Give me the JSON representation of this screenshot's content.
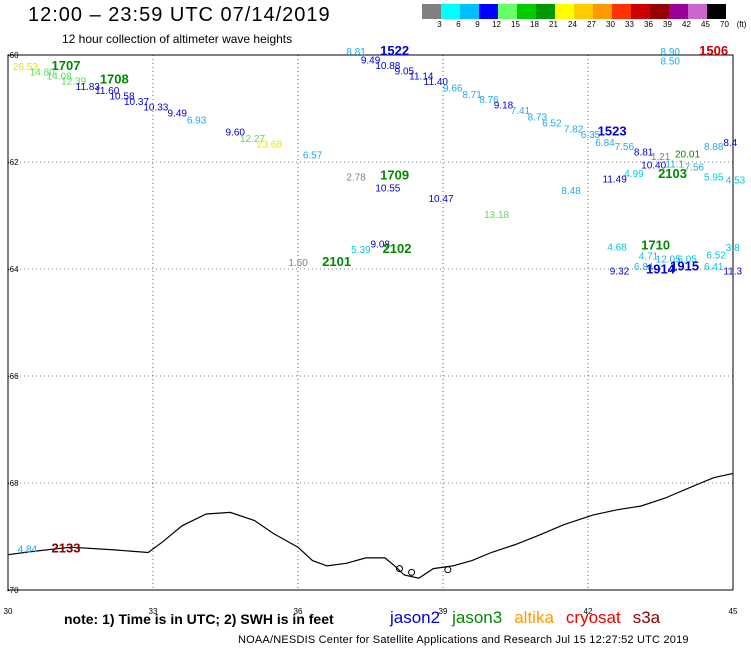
{
  "title": "12:00 – 23:59 UTC 07/14/2019",
  "subtitle": "12 hour collection of altimeter wave heights",
  "legend": {
    "unit": "(ft)",
    "bins": [
      {
        "label": "3",
        "color": "#808080"
      },
      {
        "label": "6",
        "color": "#00ffff"
      },
      {
        "label": "9",
        "color": "#00bfff"
      },
      {
        "label": "12",
        "color": "#0000ff"
      },
      {
        "label": "15",
        "color": "#66ff66"
      },
      {
        "label": "18",
        "color": "#00cc00"
      },
      {
        "label": "21",
        "color": "#009900"
      },
      {
        "label": "24",
        "color": "#ffff00"
      },
      {
        "label": "27",
        "color": "#ffcc00"
      },
      {
        "label": "30",
        "color": "#ff9900"
      },
      {
        "label": "33",
        "color": "#ff3300"
      },
      {
        "label": "36",
        "color": "#cc0000"
      },
      {
        "label": "39",
        "color": "#990000"
      },
      {
        "label": "42",
        "color": "#990099"
      },
      {
        "label": "45",
        "color": "#cc66cc"
      },
      {
        "label": "70",
        "color": "#000000"
      }
    ]
  },
  "axes": {
    "lon_ticks": [
      "30",
      "33",
      "36",
      "39",
      "42",
      "45"
    ],
    "lat_ticks": [
      "-60",
      "-62",
      "-64",
      "-66",
      "-68",
      "-70"
    ]
  },
  "colors": {
    "gray": "#808080",
    "cyan": "#00ccdd",
    "lightblue": "#22aaee",
    "blue": "#0000dd",
    "lightgreen": "#55dd55",
    "green": "#008800",
    "yellow": "#e8e800",
    "red": "#cc0000",
    "darkred": "#880000"
  },
  "observations": [
    {
      "text": "26.53",
      "lon": 30.1,
      "lat": -60.28,
      "color": "yellow"
    },
    {
      "text": "1707",
      "lon": 30.9,
      "lat": -60.28,
      "color": "green",
      "time": true
    },
    {
      "text": "14.80",
      "lon": 30.45,
      "lat": -60.38,
      "color": "lightgreen"
    },
    {
      "text": "14.08",
      "lon": 30.8,
      "lat": -60.46,
      "color": "lightgreen"
    },
    {
      "text": "12.39",
      "lon": 31.1,
      "lat": -60.55,
      "color": "lightgreen"
    },
    {
      "text": "1708",
      "lon": 31.9,
      "lat": -60.53,
      "color": "green",
      "time": true
    },
    {
      "text": "11.83",
      "lon": 31.4,
      "lat": -60.65,
      "color": "blue"
    },
    {
      "text": "11.60",
      "lon": 31.8,
      "lat": -60.73,
      "color": "blue"
    },
    {
      "text": "10.58",
      "lon": 32.1,
      "lat": -60.83,
      "color": "blue"
    },
    {
      "text": "10.37",
      "lon": 32.4,
      "lat": -60.93,
      "color": "blue"
    },
    {
      "text": "10.33",
      "lon": 32.8,
      "lat": -61.04,
      "color": "blue"
    },
    {
      "text": "9.49",
      "lon": 33.3,
      "lat": -61.15,
      "color": "blue"
    },
    {
      "text": "6.93",
      "lon": 33.7,
      "lat": -61.28,
      "color": "lightblue"
    },
    {
      "text": "9.60",
      "lon": 34.5,
      "lat": -61.5,
      "color": "blue"
    },
    {
      "text": "12.27",
      "lon": 34.8,
      "lat": -61.63,
      "color": "lightgreen"
    },
    {
      "text": "23.68",
      "lon": 35.15,
      "lat": -61.73,
      "color": "yellow"
    },
    {
      "text": "6.57",
      "lon": 36.1,
      "lat": -61.93,
      "color": "lightblue"
    },
    {
      "text": "8.81",
      "lon": 37.0,
      "lat": -60.0,
      "color": "lightblue"
    },
    {
      "text": "1522",
      "lon": 37.7,
      "lat": -60.0,
      "color": "blue",
      "time": true
    },
    {
      "text": "9.49",
      "lon": 37.3,
      "lat": -60.16,
      "color": "blue"
    },
    {
      "text": "10.88",
      "lon": 37.6,
      "lat": -60.26,
      "color": "blue"
    },
    {
      "text": "9.05",
      "lon": 38.0,
      "lat": -60.36,
      "color": "blue"
    },
    {
      "text": "11.14",
      "lon": 38.3,
      "lat": -60.46,
      "color": "blue"
    },
    {
      "text": "11.40",
      "lon": 38.6,
      "lat": -60.56,
      "color": "blue"
    },
    {
      "text": "9.66",
      "lon": 39.0,
      "lat": -60.68,
      "color": "lightblue"
    },
    {
      "text": "8.71",
      "lon": 39.4,
      "lat": -60.8,
      "color": "lightblue"
    },
    {
      "text": "8.76",
      "lon": 39.75,
      "lat": -60.9,
      "color": "lightblue"
    },
    {
      "text": "9.18",
      "lon": 40.05,
      "lat": -61.0,
      "color": "blue"
    },
    {
      "text": "7.41",
      "lon": 40.4,
      "lat": -61.1,
      "color": "lightblue"
    },
    {
      "text": "8.73",
      "lon": 40.75,
      "lat": -61.22,
      "color": "lightblue"
    },
    {
      "text": "6.52",
      "lon": 41.05,
      "lat": -61.34,
      "color": "lightblue"
    },
    {
      "text": "7.82",
      "lon": 41.5,
      "lat": -61.45,
      "color": "lightblue"
    },
    {
      "text": "6.35",
      "lon": 41.85,
      "lat": -61.55,
      "color": "lightblue"
    },
    {
      "text": "1523",
      "lon": 42.2,
      "lat": -61.5,
      "color": "blue",
      "time": true
    },
    {
      "text": "6.84",
      "lon": 42.15,
      "lat": -61.7,
      "color": "lightblue"
    },
    {
      "text": "7.56",
      "lon": 42.55,
      "lat": -61.78,
      "color": "lightblue"
    },
    {
      "text": "8.81",
      "lon": 42.95,
      "lat": -61.88,
      "color": "blue"
    },
    {
      "text": "1.21",
      "lon": 43.3,
      "lat": -61.96,
      "color": "gray"
    },
    {
      "text": "20.01",
      "lon": 43.8,
      "lat": -61.92,
      "color": "green"
    },
    {
      "text": "8.88",
      "lon": 44.4,
      "lat": -61.78,
      "color": "lightblue"
    },
    {
      "text": "8.4",
      "lon": 44.8,
      "lat": -61.7,
      "color": "blue"
    },
    {
      "text": "10.40",
      "lon": 43.1,
      "lat": -62.12,
      "color": "blue"
    },
    {
      "text": "11.1",
      "lon": 43.6,
      "lat": -62.1,
      "color": "lightblue"
    },
    {
      "text": "7.56",
      "lon": 44.0,
      "lat": -62.16,
      "color": "lightblue"
    },
    {
      "text": "4.99",
      "lon": 42.75,
      "lat": -62.28,
      "color": "cyan"
    },
    {
      "text": "11.49",
      "lon": 42.3,
      "lat": -62.38,
      "color": "blue"
    },
    {
      "text": "2103",
      "lon": 43.45,
      "lat": -62.3,
      "color": "green",
      "time": true
    },
    {
      "text": "5.95",
      "lon": 44.4,
      "lat": -62.35,
      "color": "cyan"
    },
    {
      "text": "4.53",
      "lon": 44.85,
      "lat": -62.4,
      "color": "cyan"
    },
    {
      "text": "8.48",
      "lon": 41.45,
      "lat": -62.6,
      "color": "lightblue"
    },
    {
      "text": "2.78",
      "lon": 37.0,
      "lat": -62.35,
      "color": "gray"
    },
    {
      "text": "1709",
      "lon": 37.7,
      "lat": -62.33,
      "color": "green",
      "time": true
    },
    {
      "text": "10.55",
      "lon": 37.6,
      "lat": -62.55,
      "color": "blue"
    },
    {
      "text": "10.47",
      "lon": 38.7,
      "lat": -62.75,
      "color": "blue"
    },
    {
      "text": "13.18",
      "lon": 39.85,
      "lat": -63.05,
      "color": "lightgreen"
    },
    {
      "text": "9.08",
      "lon": 37.5,
      "lat": -63.6,
      "color": "blue"
    },
    {
      "text": "5.39",
      "lon": 37.1,
      "lat": -63.7,
      "color": "cyan"
    },
    {
      "text": "2102",
      "lon": 37.75,
      "lat": -63.7,
      "color": "green",
      "time": true
    },
    {
      "text": "1.50",
      "lon": 35.8,
      "lat": -63.94,
      "color": "gray"
    },
    {
      "text": "2101",
      "lon": 36.5,
      "lat": -63.94,
      "color": "green",
      "time": true
    },
    {
      "text": "4.68",
      "lon": 42.4,
      "lat": -63.65,
      "color": "cyan"
    },
    {
      "text": "1710",
      "lon": 43.1,
      "lat": -63.64,
      "color": "green",
      "time": true
    },
    {
      "text": "4.71",
      "lon": 43.05,
      "lat": -63.82,
      "color": "cyan"
    },
    {
      "text": "12.05",
      "lon": 43.4,
      "lat": -63.88,
      "color": "lightblue"
    },
    {
      "text": "6.05",
      "lon": 43.85,
      "lat": -63.88,
      "color": "cyan"
    },
    {
      "text": "6.52",
      "lon": 44.45,
      "lat": -63.8,
      "color": "cyan"
    },
    {
      "text": "3.8",
      "lon": 44.85,
      "lat": -63.66,
      "color": "cyan"
    },
    {
      "text": "6.84",
      "lon": 42.95,
      "lat": -64.02,
      "color": "lightblue"
    },
    {
      "text": "9.32",
      "lon": 42.45,
      "lat": -64.1,
      "color": "blue"
    },
    {
      "text": "1914",
      "lon": 43.2,
      "lat": -64.08,
      "color": "blue",
      "time": true
    },
    {
      "text": "1915",
      "lon": 43.7,
      "lat": -64.03,
      "color": "blue",
      "time": true
    },
    {
      "text": "6.41",
      "lon": 44.4,
      "lat": -64.02,
      "color": "cyan"
    },
    {
      "text": "11.3",
      "lon": 44.8,
      "lat": -64.1,
      "color": "blue"
    },
    {
      "text": "4.84",
      "lon": 30.2,
      "lat": -69.3,
      "color": "lightblue"
    },
    {
      "text": "2133",
      "lon": 30.9,
      "lat": -69.3,
      "color": "darkred",
      "time": true
    },
    {
      "text": "8.90",
      "lon": 43.5,
      "lat": -60.0,
      "color": "lightblue"
    },
    {
      "text": "1506",
      "lon": 44.3,
      "lat": -60.0,
      "color": "red",
      "time": true
    },
    {
      "text": "8.50",
      "lon": 43.5,
      "lat": -60.18,
      "color": "lightblue"
    }
  ],
  "coastline": [
    [
      30.0,
      -69.34
    ],
    [
      30.5,
      -69.28
    ],
    [
      31.3,
      -69.2
    ],
    [
      32.2,
      -69.25
    ],
    [
      32.9,
      -69.3
    ],
    [
      33.2,
      -69.1
    ],
    [
      33.6,
      -68.8
    ],
    [
      34.1,
      -68.58
    ],
    [
      34.6,
      -68.55
    ],
    [
      35.1,
      -68.7
    ],
    [
      35.5,
      -68.95
    ],
    [
      36.0,
      -69.2
    ],
    [
      36.3,
      -69.45
    ],
    [
      36.6,
      -69.55
    ],
    [
      37.0,
      -69.5
    ],
    [
      37.4,
      -69.4
    ],
    [
      37.8,
      -69.4
    ],
    [
      38.0,
      -69.55
    ],
    [
      38.2,
      -69.72
    ],
    [
      38.5,
      -69.78
    ],
    [
      38.8,
      -69.6
    ],
    [
      39.2,
      -69.55
    ],
    [
      39.6,
      -69.45
    ],
    [
      40.0,
      -69.3
    ],
    [
      40.5,
      -69.15
    ],
    [
      41.0,
      -68.97
    ],
    [
      41.5,
      -68.78
    ],
    [
      42.1,
      -68.6
    ],
    [
      42.6,
      -68.5
    ],
    [
      43.1,
      -68.43
    ],
    [
      43.6,
      -68.28
    ],
    [
      44.2,
      -68.05
    ],
    [
      44.6,
      -67.9
    ],
    [
      45.0,
      -67.82
    ]
  ],
  "note": "note: 1) Time is in UTC; 2) SWH is in feet",
  "satellites": [
    {
      "name": "jason2",
      "color": "#0000dd"
    },
    {
      "name": "jason3",
      "color": "#008800"
    },
    {
      "name": "altika",
      "color": "#ff9900"
    },
    {
      "name": "cryosat",
      "color": "#ee0000"
    },
    {
      "name": "s3a",
      "color": "#880000"
    }
  ],
  "credit": "NOAA/NESDIS Center for Satellite Applications and Research    Jul 15 12:27:52 UTC 2019"
}
